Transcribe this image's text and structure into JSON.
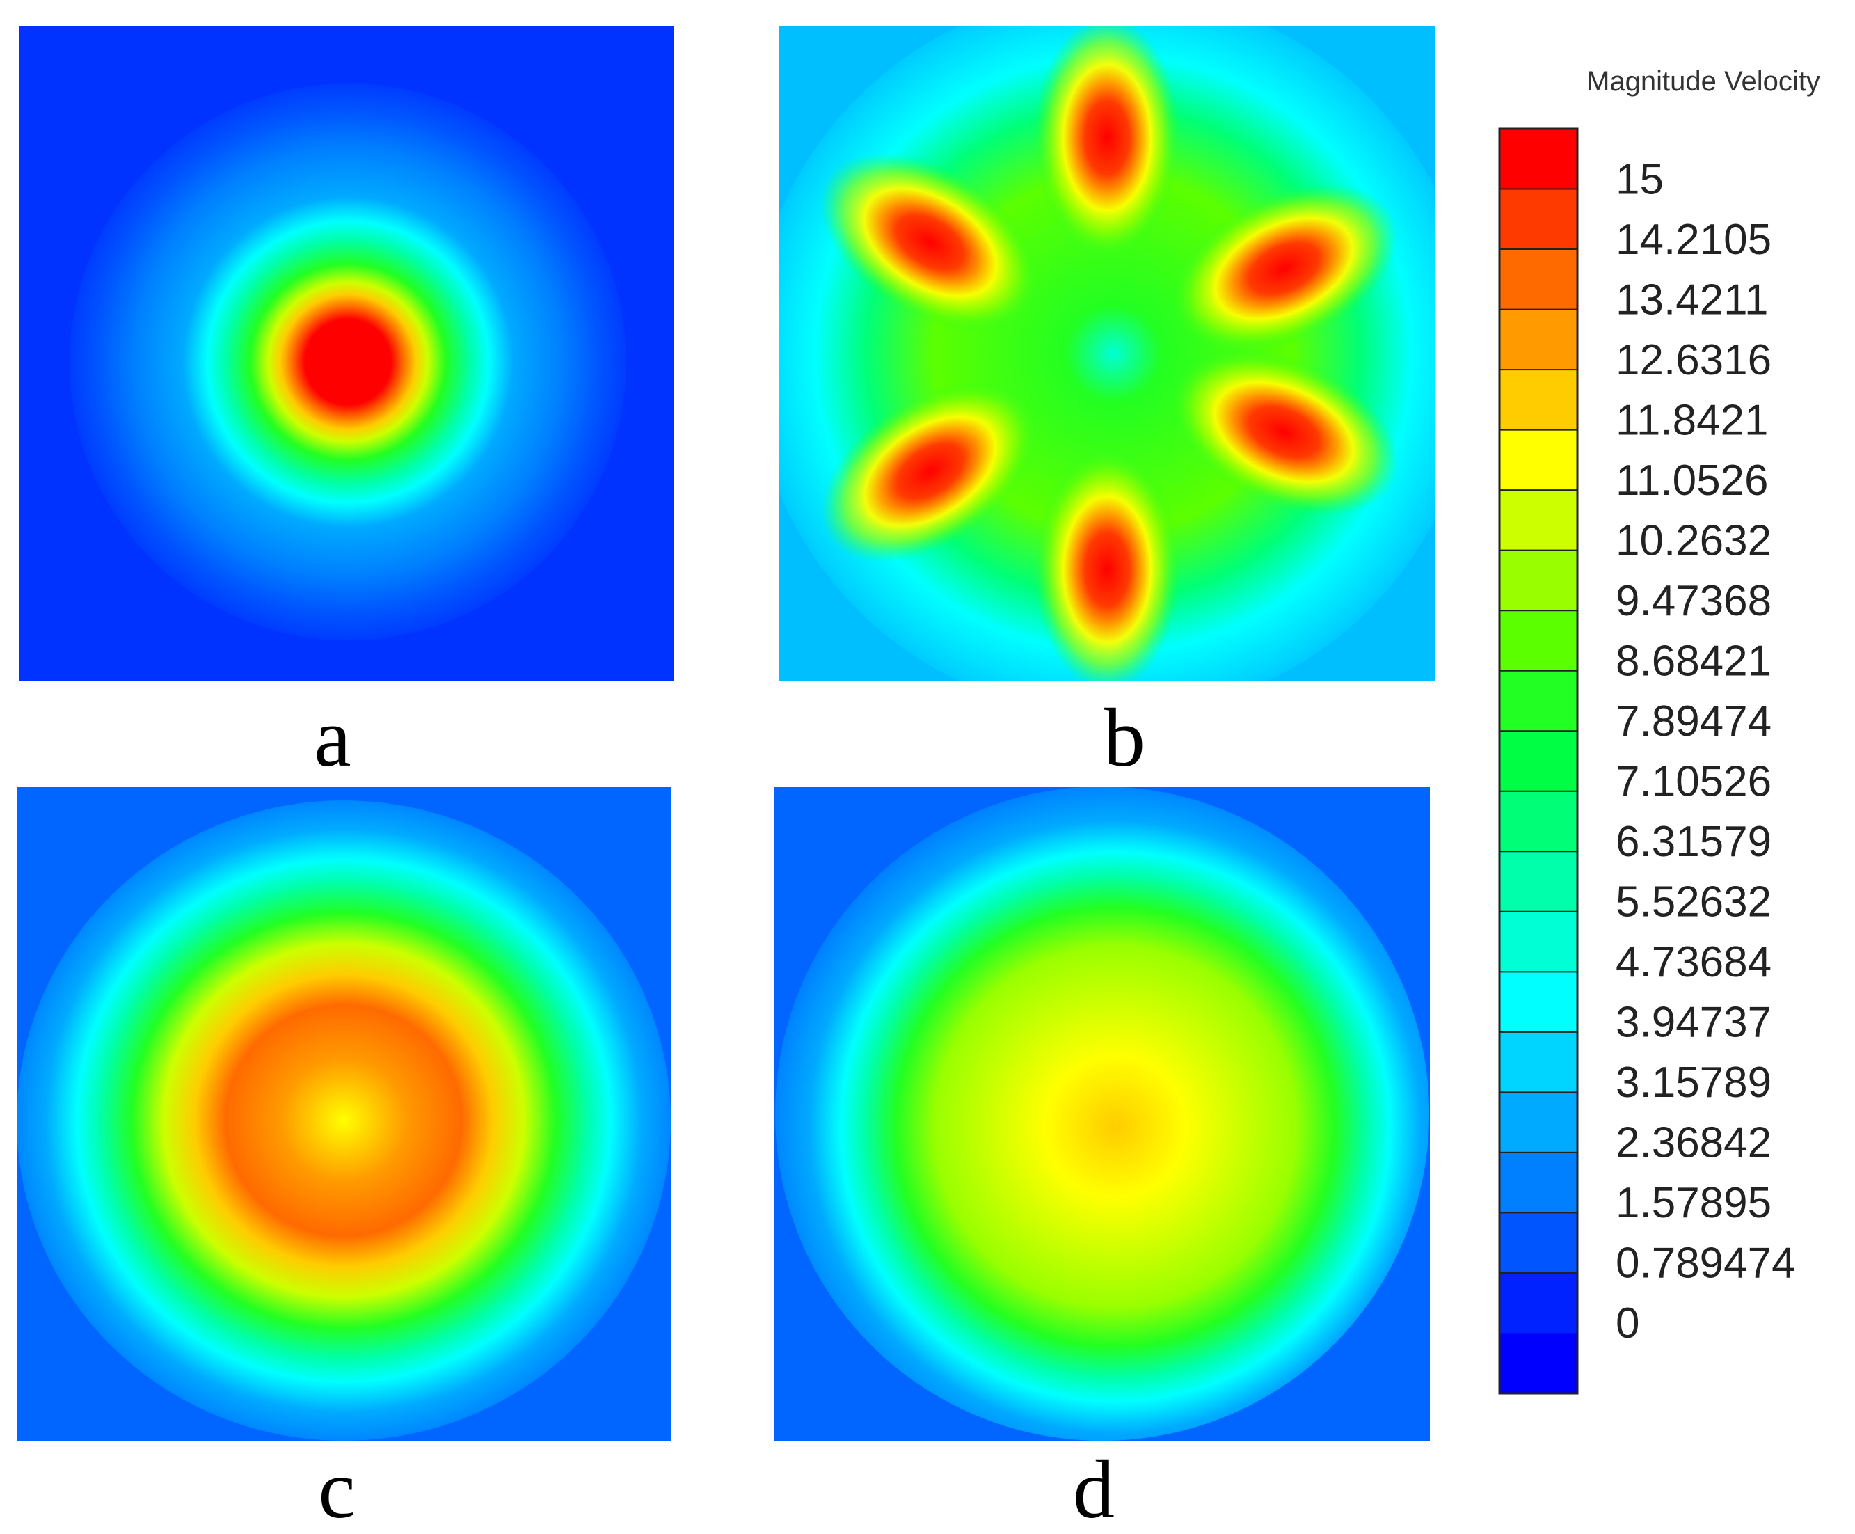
{
  "chart_data": {
    "type": "heatmap",
    "title": "",
    "panels": [
      {
        "label": "a",
        "pattern": "single central jet",
        "centers": [
          {
            "x": 0.5,
            "y": 0.5,
            "value": 15
          }
        ]
      },
      {
        "label": "b",
        "pattern": "six lobes around center",
        "centers": [
          {
            "x": 0.5,
            "y": 0.17,
            "value": 15
          },
          {
            "x": 0.23,
            "y": 0.33,
            "value": 15
          },
          {
            "x": 0.77,
            "y": 0.37,
            "value": 15
          },
          {
            "x": 0.23,
            "y": 0.68,
            "value": 15
          },
          {
            "x": 0.77,
            "y": 0.62,
            "value": 15
          },
          {
            "x": 0.5,
            "y": 0.83,
            "value": 15
          }
        ]
      },
      {
        "label": "c",
        "pattern": "broad central core, max about 13.4",
        "centers": [
          {
            "x": 0.5,
            "y": 0.5,
            "value": 13.4
          }
        ]
      },
      {
        "label": "d",
        "pattern": "broad central core, max about 12.6",
        "centers": [
          {
            "x": 0.55,
            "y": 0.55,
            "value": 12.6
          }
        ]
      }
    ],
    "colorbar": {
      "title": "Magnitude Velocity",
      "min": 0,
      "max": 15,
      "ticks": [
        "15",
        "14.2105",
        "13.4211",
        "12.6316",
        "11.8421",
        "11.0526",
        "10.2632",
        "9.47368",
        "8.68421",
        "7.89474",
        "7.10526",
        "6.31579",
        "5.52632",
        "4.73684",
        "3.94737",
        "3.15789",
        "2.36842",
        "1.57895",
        "0.789474",
        "0"
      ],
      "colors": [
        "#ff0000",
        "#ff3a00",
        "#ff6a00",
        "#ff9a00",
        "#ffcc00",
        "#ffff00",
        "#ccff00",
        "#99ff00",
        "#5cff00",
        "#22ff22",
        "#00ff44",
        "#00ff77",
        "#00ffaa",
        "#00ffd5",
        "#00ffff",
        "#00d5ff",
        "#00aaff",
        "#007fff",
        "#0055ff",
        "#0022ff",
        "#0000ff"
      ]
    }
  }
}
